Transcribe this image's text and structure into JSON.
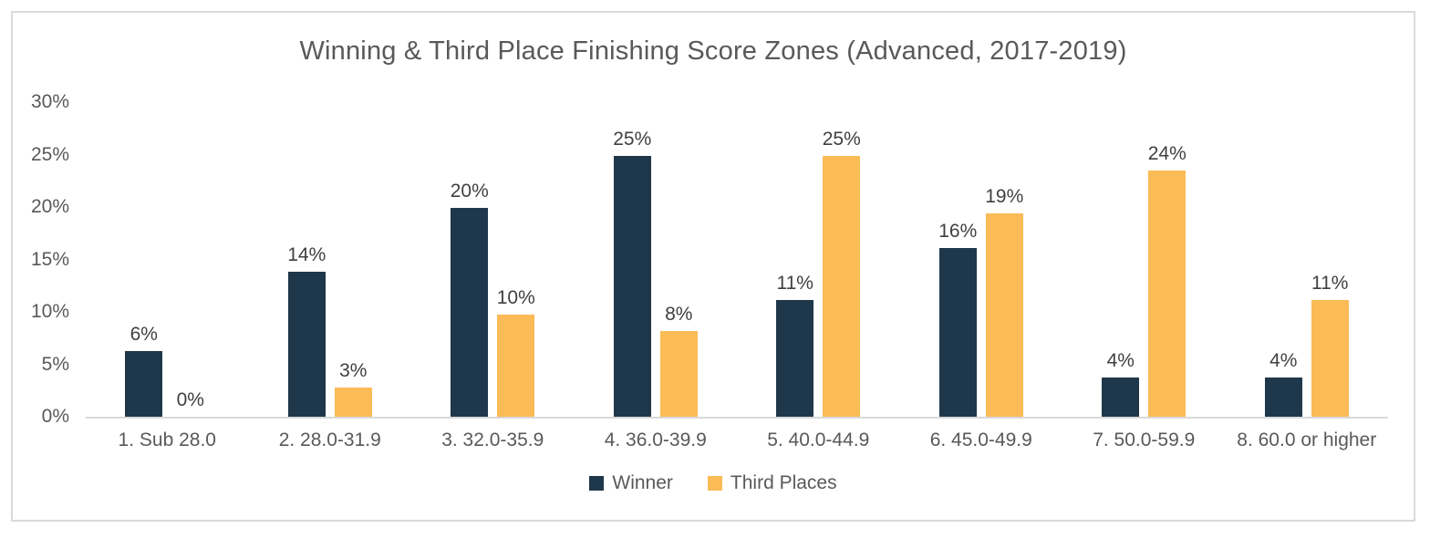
{
  "chart_data": {
    "type": "bar",
    "title": "Winning & Third Place Finishing Score Zones (Advanced, 2017-2019)",
    "categories": [
      "1. Sub 28.0",
      "2. 28.0-31.9",
      "3. 32.0-35.9",
      "4. 36.0-39.9",
      "5. 40.0-44.9",
      "6. 45.0-49.9",
      "7. 50.0-59.9",
      "8. 60.0 or higher"
    ],
    "series": [
      {
        "name": "Winner",
        "color": "#1F374A",
        "values": [
          6.3,
          13.8,
          19.9,
          24.9,
          11.1,
          16.1,
          3.7,
          3.7
        ],
        "labels": [
          "6%",
          "14%",
          "20%",
          "25%",
          "11%",
          "16%",
          "4%",
          "4%"
        ]
      },
      {
        "name": "Third Places",
        "color": "#FBBB56",
        "values": [
          0,
          2.8,
          9.7,
          8.2,
          24.9,
          19.4,
          23.5,
          11.1
        ],
        "labels": [
          "0%",
          "3%",
          "10%",
          "8%",
          "25%",
          "19%",
          "24%",
          "11%"
        ]
      }
    ],
    "xlabel": "",
    "ylabel": "",
    "ylim": [
      0,
      30
    ],
    "y_ticks": [
      {
        "value": 0,
        "label": "0%"
      },
      {
        "value": 5,
        "label": "5%"
      },
      {
        "value": 10,
        "label": "10%"
      },
      {
        "value": 15,
        "label": "15%"
      },
      {
        "value": 20,
        "label": "20%"
      },
      {
        "value": 25,
        "label": "25%"
      },
      {
        "value": 30,
        "label": "30%"
      }
    ],
    "grid": false,
    "legend_position": "bottom"
  },
  "style": {
    "frame_border_color": "#D9D9D9",
    "axis_line_color": "#D9D9D9",
    "title_color": "#595959",
    "axis_text_color": "#595959",
    "data_label_color": "#404040",
    "background_color": "#FFFFFF"
  }
}
